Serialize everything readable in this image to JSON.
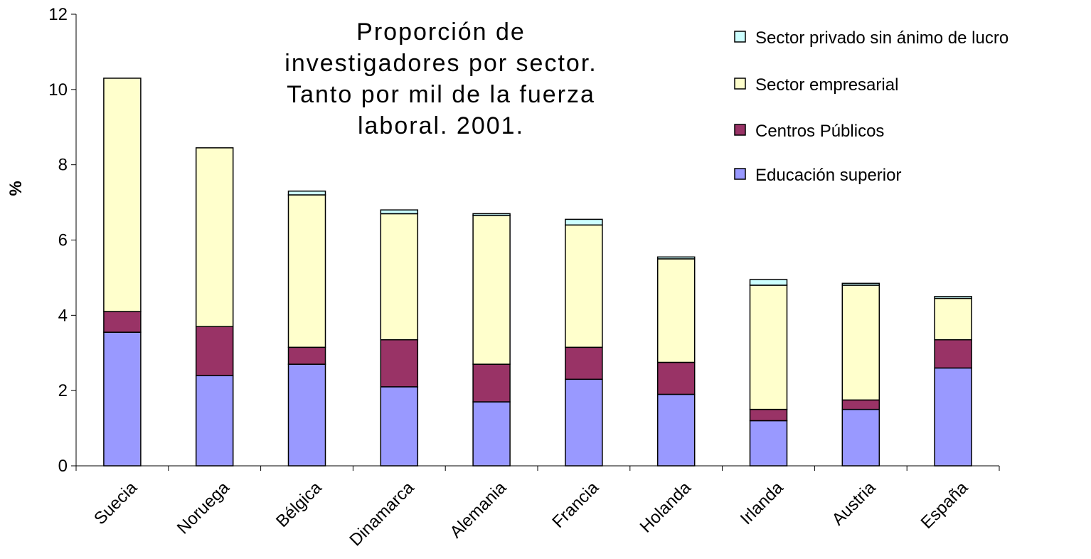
{
  "chart_data": {
    "type": "stacked_bar",
    "title": [
      "Proporción de",
      "investigadores por sector.",
      "Tanto por mil de la fuerza",
      "laboral. 2001."
    ],
    "y_label": "%",
    "categories": [
      "Suecia",
      "Noruega",
      "Bélgica",
      "Dinamarca",
      "Alemania",
      "Francia",
      "Holanda",
      "Irlanda",
      "Austria",
      "España"
    ],
    "series": [
      {
        "name": "Educación superior",
        "color": "#9999ff",
        "values": [
          3.55,
          2.4,
          2.7,
          2.1,
          1.7,
          2.3,
          1.9,
          1.2,
          1.5,
          2.6
        ]
      },
      {
        "name": "Centros Públicos",
        "color": "#993366",
        "values": [
          0.55,
          1.3,
          0.45,
          1.25,
          1.0,
          0.85,
          0.85,
          0.3,
          0.25,
          0.75
        ]
      },
      {
        "name": "Sector empresarial",
        "color": "#ffffcc",
        "values": [
          6.2,
          4.75,
          4.05,
          3.35,
          3.95,
          3.25,
          2.75,
          3.3,
          3.05,
          1.1
        ]
      },
      {
        "name": "Sector privado sin ánimo de lucro",
        "color": "#ccffff",
        "values": [
          0,
          0,
          0.1,
          0.1,
          0.05,
          0.15,
          0.05,
          0.15,
          0.05,
          0.05
        ]
      }
    ],
    "ylim": [
      0,
      12
    ],
    "yticks": [
      0,
      2,
      4,
      6,
      8,
      10,
      12
    ],
    "grid": false,
    "legend": "top-right"
  }
}
